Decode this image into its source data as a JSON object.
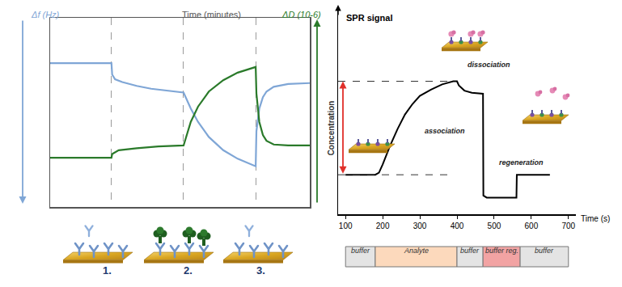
{
  "chart_data": [
    {
      "type": "line",
      "title": "Time (minutes)",
      "y_label": "Δf (Hz)",
      "y2_label": "ΔD (10-6)",
      "xlim": [
        0,
        36
      ],
      "xticks": [
        8.5,
        18.5,
        28.5
      ],
      "ylim": [
        0,
        100
      ],
      "yticks": [],
      "y2lim": [
        0,
        100
      ],
      "y2ticks": [],
      "grid": true,
      "tick_labels": false,
      "series": [
        {
          "color": "#7fa6d6",
          "x": [
            0,
            8.5,
            8.6,
            9,
            10,
            12,
            14,
            16,
            18.5,
            19.5,
            20.5,
            22,
            24,
            26,
            28.5,
            28.6,
            29,
            29.5,
            30,
            31,
            33,
            36
          ],
          "values": [
            76,
            76,
            70,
            67.5,
            66,
            64,
            62.5,
            61.5,
            60.5,
            52,
            45,
            37,
            30,
            25.5,
            21.5,
            40,
            52,
            58,
            61,
            63.5,
            65,
            65.5
          ]
        },
        {
          "color": "#2a7a2a",
          "axis": "y2",
          "x": [
            0,
            8.5,
            8.6,
            9.5,
            12,
            15,
            18.5,
            19.5,
            20.5,
            22,
            24,
            26,
            28.5,
            28.6,
            29,
            29.5,
            30,
            31,
            33,
            36
          ],
          "values": [
            26,
            26,
            28,
            30,
            31,
            32,
            32.5,
            45,
            53,
            61,
            67,
            71,
            74,
            60,
            45,
            38,
            35,
            33,
            32.5,
            32.5
          ]
        }
      ],
      "stages": [
        "1.",
        "2.",
        "3."
      ]
    },
    {
      "type": "line",
      "y_label": "SPR signal",
      "x_label": "Time (s)",
      "xlim": [
        80,
        720
      ],
      "xticks": [
        100,
        200,
        300,
        400,
        500,
        600,
        700
      ],
      "ylim": [
        0,
        100
      ],
      "yticks": [],
      "tick_labels": "x",
      "series": [
        {
          "color": "#000000",
          "x": [
            100,
            180,
            190,
            200,
            220,
            240,
            260,
            280,
            300,
            330,
            360,
            390,
            400,
            405,
            420,
            440,
            470,
            471,
            480,
            560,
            561,
            650
          ],
          "values": [
            19,
            19,
            20,
            24,
            33,
            41,
            48,
            53,
            57,
            60,
            62.5,
            64,
            64,
            62,
            59.5,
            58.5,
            58,
            9,
            8,
            8,
            19,
            19
          ]
        }
      ],
      "annotations": [
        "association",
        "dissociation",
        "regeneration",
        "Concentration"
      ],
      "phases": [
        {
          "label": "buffer",
          "start": 100,
          "end": 180,
          "color": "#e4e4e4"
        },
        {
          "label": "Analyte",
          "start": 180,
          "end": 400,
          "color": "#fcd9bc"
        },
        {
          "label": "buffer",
          "start": 400,
          "end": 470,
          "color": "#e4e4e4"
        },
        {
          "label": "buffer reg.",
          "start": 470,
          "end": 570,
          "color": "#f2a3a3"
        },
        {
          "label": "buffer",
          "start": 570,
          "end": 700,
          "color": "#e4e4e4"
        }
      ]
    }
  ]
}
